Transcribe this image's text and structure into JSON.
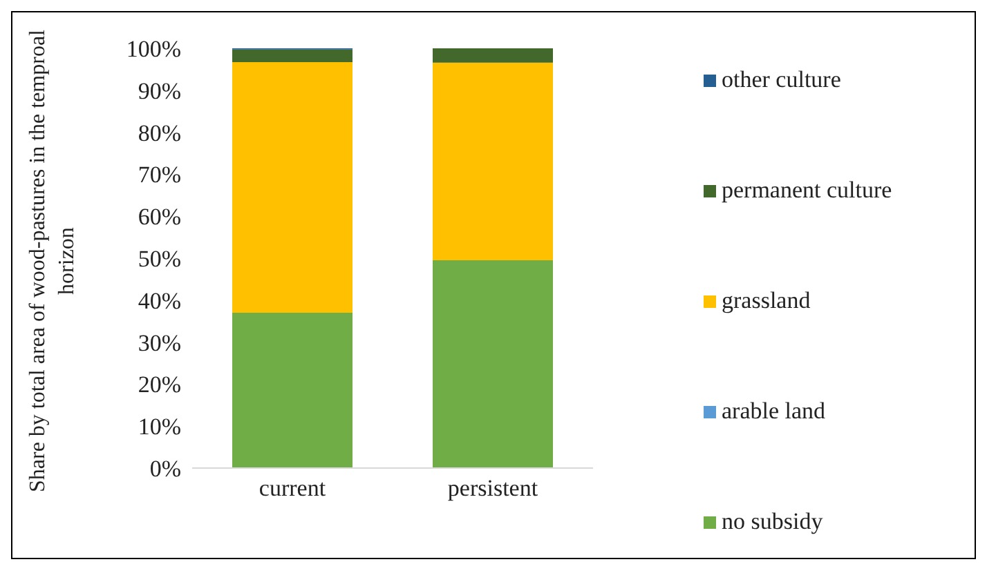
{
  "chart_data": {
    "type": "bar",
    "stacked": true,
    "ylabel": "Share  by total area of wood-pastures in the temproal horizon",
    "categories": [
      "current",
      "persistent"
    ],
    "series": [
      {
        "name": "no subsidy",
        "color": "#70ad47",
        "values": [
          37,
          49.5
        ]
      },
      {
        "name": "arable land",
        "color": "#5b9bd5",
        "values": [
          0,
          0
        ]
      },
      {
        "name": "grassland",
        "color": "#ffc000",
        "values": [
          59.7,
          47.1
        ]
      },
      {
        "name": "permanent culture",
        "color": "#43682b",
        "values": [
          3,
          3.4
        ]
      },
      {
        "name": "other culture",
        "color": "#255e91",
        "values": [
          0.3,
          0
        ]
      }
    ],
    "ylim": [
      0,
      100
    ],
    "yticks": [
      {
        "value": 0,
        "label": "0%"
      },
      {
        "value": 10,
        "label": "10%"
      },
      {
        "value": 20,
        "label": "20%"
      },
      {
        "value": 30,
        "label": "30%"
      },
      {
        "value": 40,
        "label": "40%"
      },
      {
        "value": 50,
        "label": "50%"
      },
      {
        "value": 60,
        "label": "60%"
      },
      {
        "value": 70,
        "label": "70%"
      },
      {
        "value": 80,
        "label": "80%"
      },
      {
        "value": 90,
        "label": "90%"
      },
      {
        "value": 100,
        "label": "100%"
      }
    ],
    "grid": false,
    "legend": "right"
  }
}
